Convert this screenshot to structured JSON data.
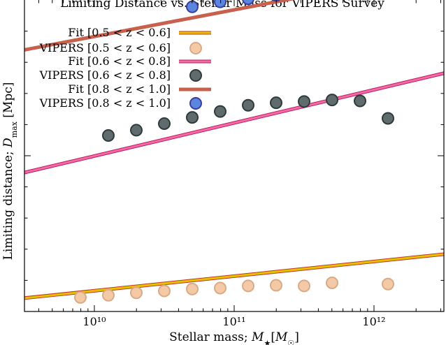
{
  "chart_data": {
    "type": "scatter",
    "title": "Limiting Distance vs. Stellar Mass for VIPERS Survey",
    "xlabel": "Stellar mass; M★[M☉]",
    "ylabel": "Limiting distance; D_max [Mpc]",
    "x_scale": "log",
    "x_range_log10": [
      9.5,
      12.5
    ],
    "xticks": [
      {
        "log10": 10,
        "label": "10¹⁰"
      },
      {
        "log10": 11,
        "label": "10¹¹"
      },
      {
        "log10": 12,
        "label": "10¹²"
      }
    ],
    "y_range": [
      0,
      1
    ],
    "y_tick_values": [
      0.5
    ],
    "y_tick_labels_shown": false,
    "legend_position": "upper-left",
    "series": [
      {
        "name": "Fit [0.5 < z < 0.6]",
        "kind": "line",
        "color": "#e8c000",
        "style": "double-line",
        "outer_color": "#c0392b",
        "x_log10": [
          9.5,
          12.5
        ],
        "y": [
          0.043,
          0.184
        ]
      },
      {
        "name": "VIPERS [0.5 < z < 0.6]",
        "kind": "scatter",
        "fill": "#f4c9a6",
        "edge": "#d8ab88",
        "x_log10": [
          9.9,
          10.1,
          10.3,
          10.5,
          10.7,
          10.9,
          11.1,
          11.3,
          11.5,
          11.7,
          12.1
        ],
        "y": [
          0.045,
          0.052,
          0.06,
          0.066,
          0.072,
          0.075,
          0.082,
          0.084,
          0.082,
          0.092,
          0.088
        ]
      },
      {
        "name": "Fit [0.6 < z < 0.8]",
        "kind": "line",
        "color": "#f06ca8",
        "style": "double-line",
        "outer_color": "#c2185b",
        "x_log10": [
          9.5,
          12.5
        ],
        "y": [
          0.446,
          0.765
        ]
      },
      {
        "name": "VIPERS [0.6 < z < 0.8]",
        "kind": "scatter",
        "fill": "#5f6b6d",
        "edge": "#2f3a3c",
        "x_log10": [
          10.1,
          10.3,
          10.5,
          10.7,
          10.9,
          11.1,
          11.3,
          11.5,
          11.7,
          11.9,
          12.1
        ],
        "y": [
          0.565,
          0.582,
          0.603,
          0.623,
          0.642,
          0.662,
          0.67,
          0.674,
          0.679,
          0.676,
          0.62
        ]
      },
      {
        "name": "Fit [0.8 < z < 1.0]",
        "kind": "line",
        "color": "#c8604e",
        "style": "thick",
        "x_log10": [
          9.5,
          12.5
        ],
        "y": [
          0.84,
          1.097
        ]
      },
      {
        "name": "VIPERS [0.8 < z < 1.0]",
        "kind": "scatter",
        "fill": "#5b86e0",
        "edge": "#3a3f9a",
        "x_log10": [
          10.7,
          10.9,
          11.1,
          11.3,
          11.5,
          11.7
        ],
        "y": [
          0.978,
          0.994,
          1.004,
          1.015,
          1.023,
          1.027
        ]
      }
    ]
  }
}
